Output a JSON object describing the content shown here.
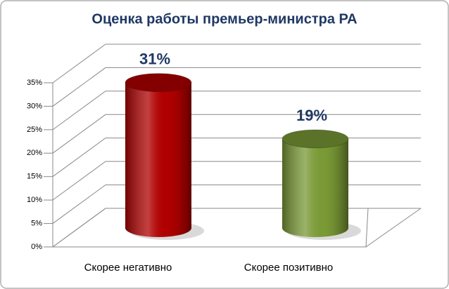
{
  "chart_data": {
    "type": "bar",
    "title": "Оценка работы премьер-министра РА",
    "categories": [
      "Скорее негативно",
      "Скорее позитивно"
    ],
    "values": [
      31,
      19
    ],
    "value_labels": [
      "31%",
      "19%"
    ],
    "colors": [
      "#b00000",
      "#7a9a36"
    ],
    "ylim": [
      0,
      35
    ],
    "yticks": [
      {
        "value": 0,
        "label": "0%"
      },
      {
        "value": 5,
        "label": "5%"
      },
      {
        "value": 10,
        "label": "10%"
      },
      {
        "value": 15,
        "label": "15%"
      },
      {
        "value": 20,
        "label": "20%"
      },
      {
        "value": 25,
        "label": "25%"
      },
      {
        "value": 30,
        "label": "30%"
      },
      {
        "value": 35,
        "label": "35%"
      }
    ],
    "grid": true
  }
}
